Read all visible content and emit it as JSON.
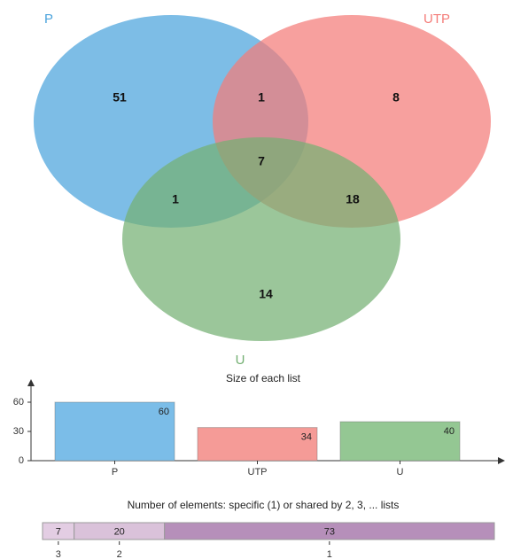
{
  "chart_data": [
    {
      "type": "venn",
      "series": [
        {
          "name": "P",
          "color": "#4ba3dc"
        },
        {
          "name": "UTP",
          "color": "#f47c78"
        },
        {
          "name": "U",
          "color": "#74b073"
        }
      ],
      "values": [
        51,
        8,
        14,
        1,
        1,
        18,
        7
      ]
    },
    {
      "type": "bar",
      "title": "Size of each list",
      "categories": [
        "P",
        "UTP",
        "U"
      ],
      "values": [
        60,
        34,
        40
      ],
      "colors": [
        "#7bbde8",
        "#f59b97",
        "#94c793"
      ],
      "ylim": [
        0,
        80
      ],
      "yticks": [
        0,
        30,
        60
      ]
    },
    {
      "type": "stacked-bar",
      "title": "Number of elements: specific (1) or shared by 2, 3, ... lists",
      "categories": [
        "3",
        "2",
        "1"
      ],
      "values": [
        7,
        20,
        73
      ],
      "colors": [
        "#e3cde3",
        "#dac2da",
        "#b68fba"
      ],
      "xlim": [
        0,
        100
      ]
    }
  ]
}
